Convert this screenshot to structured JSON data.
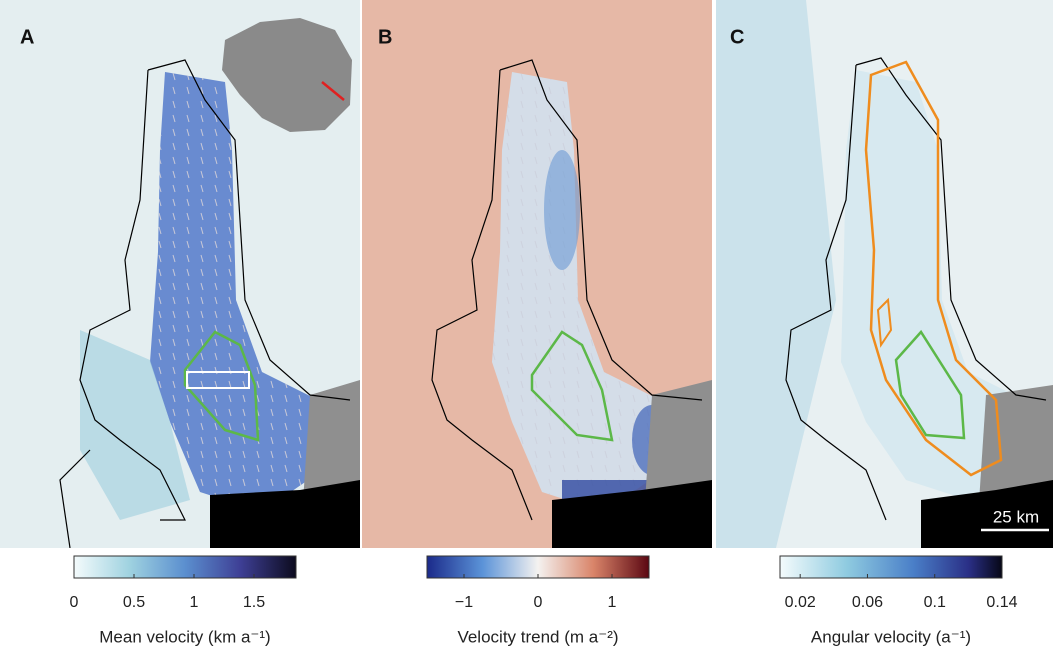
{
  "panels": [
    {
      "label": "A",
      "colorbar": {
        "range": [
          0,
          1.85
        ],
        "ticks": [
          0,
          0.5,
          1,
          1.5
        ],
        "title": "Mean velocity (km a⁻¹)"
      }
    },
    {
      "label": "B",
      "colorbar": {
        "range": [
          -1.5,
          1.5
        ],
        "ticks": [
          {
            "value": -1,
            "label": "−1"
          },
          0,
          1
        ],
        "title": "Velocity trend (m a⁻²)"
      }
    },
    {
      "label": "C",
      "colorbar": {
        "range": [
          0.008,
          0.14
        ],
        "ticks": [
          0.02,
          0.06,
          0.1,
          0.14
        ],
        "title": "Angular velocity (a⁻¹)"
      },
      "scale_bar": "25 km"
    }
  ]
}
